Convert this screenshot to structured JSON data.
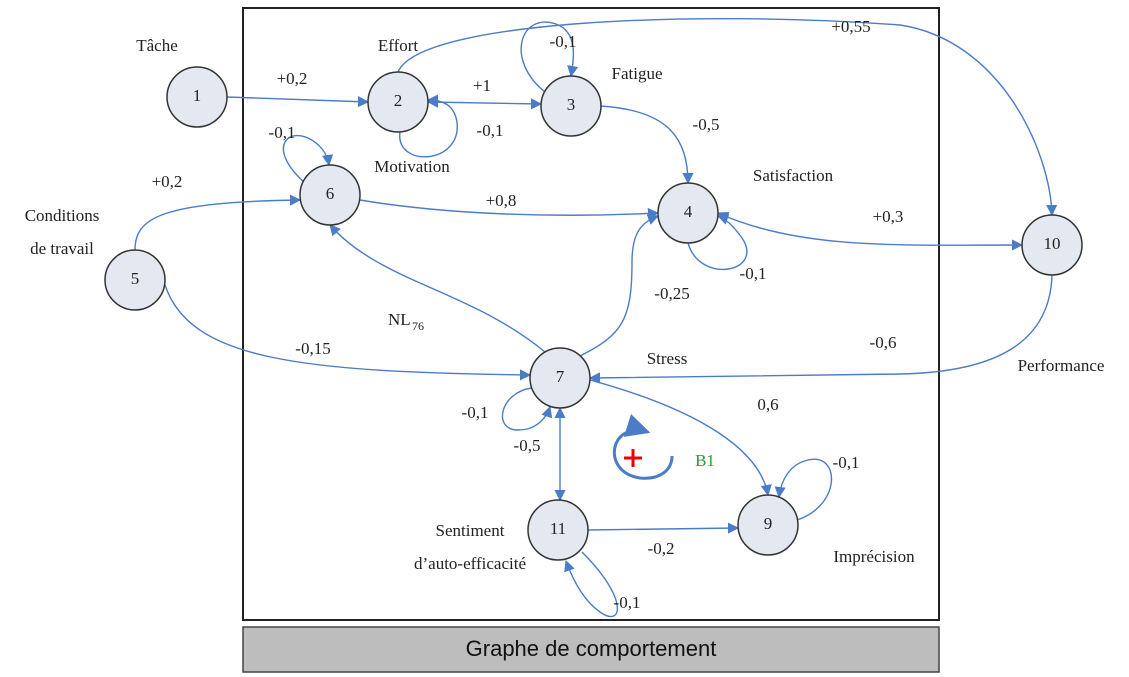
{
  "diagram": {
    "nodes": [
      {
        "number": "1",
        "label": [
          "Tâche"
        ]
      },
      {
        "number": "2",
        "label": [
          "Effort"
        ]
      },
      {
        "number": "3",
        "label": [
          "Fatigue"
        ]
      },
      {
        "number": "4",
        "label": [
          "Satisfaction"
        ]
      },
      {
        "number": "5",
        "label": [
          "Conditions",
          "de travail"
        ]
      },
      {
        "number": "6",
        "label": [
          "Motivation"
        ]
      },
      {
        "number": "7",
        "label": [
          "Stress"
        ]
      },
      {
        "number": "9",
        "label": [
          "Imprécision"
        ]
      },
      {
        "number": "10",
        "label": [
          "Performance"
        ]
      },
      {
        "number": "11",
        "label": [
          "Sentiment",
          "d’auto-efficacité"
        ]
      }
    ],
    "edge_labels": [
      "+0,2",
      "+1",
      "-0,1",
      "-0,1",
      "+0,55",
      "-0,5",
      "-0,1",
      "+0,2",
      "+0,8",
      "+0,3",
      "-0,1",
      "-0,25",
      "-0,15",
      "-0,6",
      "0,6",
      "-0,1",
      "-0,5",
      "-0,1",
      "-0,2",
      "-0,1"
    ],
    "nl_label": {
      "text": "NL",
      "subscript": "76"
    },
    "loop_label": "B1",
    "caption": "Graphe de comportement"
  }
}
